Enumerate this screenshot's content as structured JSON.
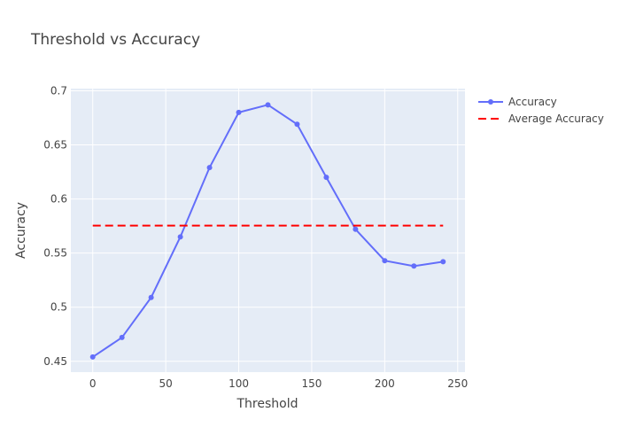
{
  "chart_data": {
    "type": "line",
    "title": "Threshold vs Accuracy",
    "xlabel": "Threshold",
    "ylabel": "Accuracy",
    "xlim": [
      -15,
      255
    ],
    "ylim": [
      0.44,
      0.702
    ],
    "x_ticks": [
      0,
      50,
      100,
      150,
      200,
      250
    ],
    "y_ticks": [
      0.45,
      0.5,
      0.55,
      0.6,
      0.65,
      0.7
    ],
    "x_tick_labels": [
      "0",
      "50",
      "100",
      "150",
      "200",
      "250"
    ],
    "y_tick_labels": [
      "0.45",
      "0.5",
      "0.55",
      "0.6",
      "0.65",
      "0.7"
    ],
    "grid": true,
    "legend_position": "top-right",
    "series": [
      {
        "name": "Accuracy",
        "mode": "lines+markers",
        "color": "#636efa",
        "x": [
          0,
          20,
          40,
          60,
          80,
          100,
          120,
          140,
          160,
          180,
          200,
          220,
          240
        ],
        "y": [
          0.454,
          0.472,
          0.509,
          0.565,
          0.629,
          0.68,
          0.687,
          0.669,
          0.62,
          0.572,
          0.543,
          0.538,
          0.542
        ]
      },
      {
        "name": "Average Accuracy",
        "mode": "dashed-line",
        "color": "#ff0000",
        "x": [
          0,
          240
        ],
        "y": [
          0.5754,
          0.5754
        ]
      }
    ]
  }
}
